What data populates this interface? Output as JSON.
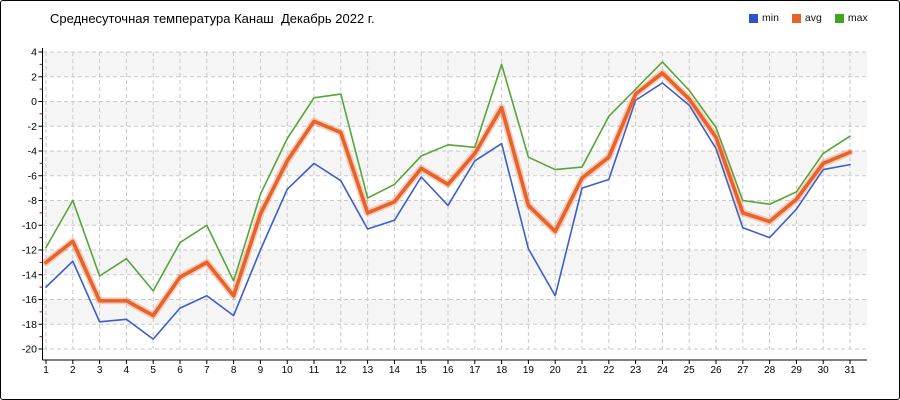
{
  "title": "Среднесуточная температура Канаш  Декабрь 2022 г.",
  "legend": {
    "items": [
      {
        "label": "min",
        "color": "#2d53cb"
      },
      {
        "label": "avg",
        "color": "#e8632a"
      },
      {
        "label": "max",
        "color": "#3fa61e"
      }
    ]
  },
  "chart_data": {
    "type": "line",
    "title": "Среднесуточная температура Канаш  Декабрь 2022 г.",
    "xlabel": "",
    "ylabel": "",
    "x": [
      1,
      2,
      3,
      4,
      5,
      6,
      7,
      8,
      9,
      10,
      11,
      12,
      13,
      14,
      15,
      16,
      17,
      18,
      19,
      20,
      21,
      22,
      23,
      24,
      25,
      26,
      27,
      28,
      29,
      30,
      31
    ],
    "ylim": [
      -20,
      4
    ],
    "ytick_step": 2,
    "grid": "dashed",
    "legend_position": "top-right",
    "axis_color": "#000000",
    "minor_tick_color": "#cc0000",
    "gridline_color": "#c9c9c9",
    "band_color": "#f5f5f5",
    "series": [
      {
        "name": "min",
        "color": "#3c5ecc",
        "width": 1.6,
        "halo": false,
        "values": [
          -15.0,
          -12.9,
          -17.8,
          -17.6,
          -19.2,
          -16.7,
          -15.7,
          -17.3,
          -12.0,
          -7.1,
          -5.0,
          -6.4,
          -10.3,
          -9.6,
          -6.1,
          -8.4,
          -4.8,
          -3.4,
          -11.9,
          -15.7,
          -7.0,
          -6.3,
          0.1,
          1.5,
          -0.3,
          -3.8,
          -10.2,
          -11.0,
          -8.7,
          -5.5,
          -5.1
        ]
      },
      {
        "name": "avg",
        "color": "#e8632a",
        "width": 3.6,
        "halo": true,
        "halo_color": "rgba(232,99,42,0.3)",
        "values": [
          -13.0,
          -11.3,
          -16.1,
          -16.1,
          -17.3,
          -14.2,
          -13.0,
          -15.7,
          -9.1,
          -4.8,
          -1.6,
          -2.5,
          -9.0,
          -8.1,
          -5.4,
          -6.7,
          -4.2,
          -0.5,
          -8.4,
          -10.5,
          -6.2,
          -4.5,
          0.6,
          2.3,
          0.2,
          -2.9,
          -9.0,
          -9.7,
          -7.9,
          -5.0,
          -4.1
        ]
      },
      {
        "name": "max",
        "color": "#55a637",
        "width": 1.6,
        "halo": false,
        "values": [
          -11.8,
          -8.0,
          -14.1,
          -12.7,
          -15.3,
          -11.4,
          -10.0,
          -14.5,
          -7.5,
          -3.0,
          0.3,
          0.6,
          -7.8,
          -6.7,
          -4.4,
          -3.5,
          -3.7,
          3.0,
          -4.5,
          -5.5,
          -5.3,
          -1.2,
          1.0,
          3.2,
          0.9,
          -2.1,
          -8.0,
          -8.3,
          -7.3,
          -4.2,
          -2.8
        ]
      }
    ]
  }
}
